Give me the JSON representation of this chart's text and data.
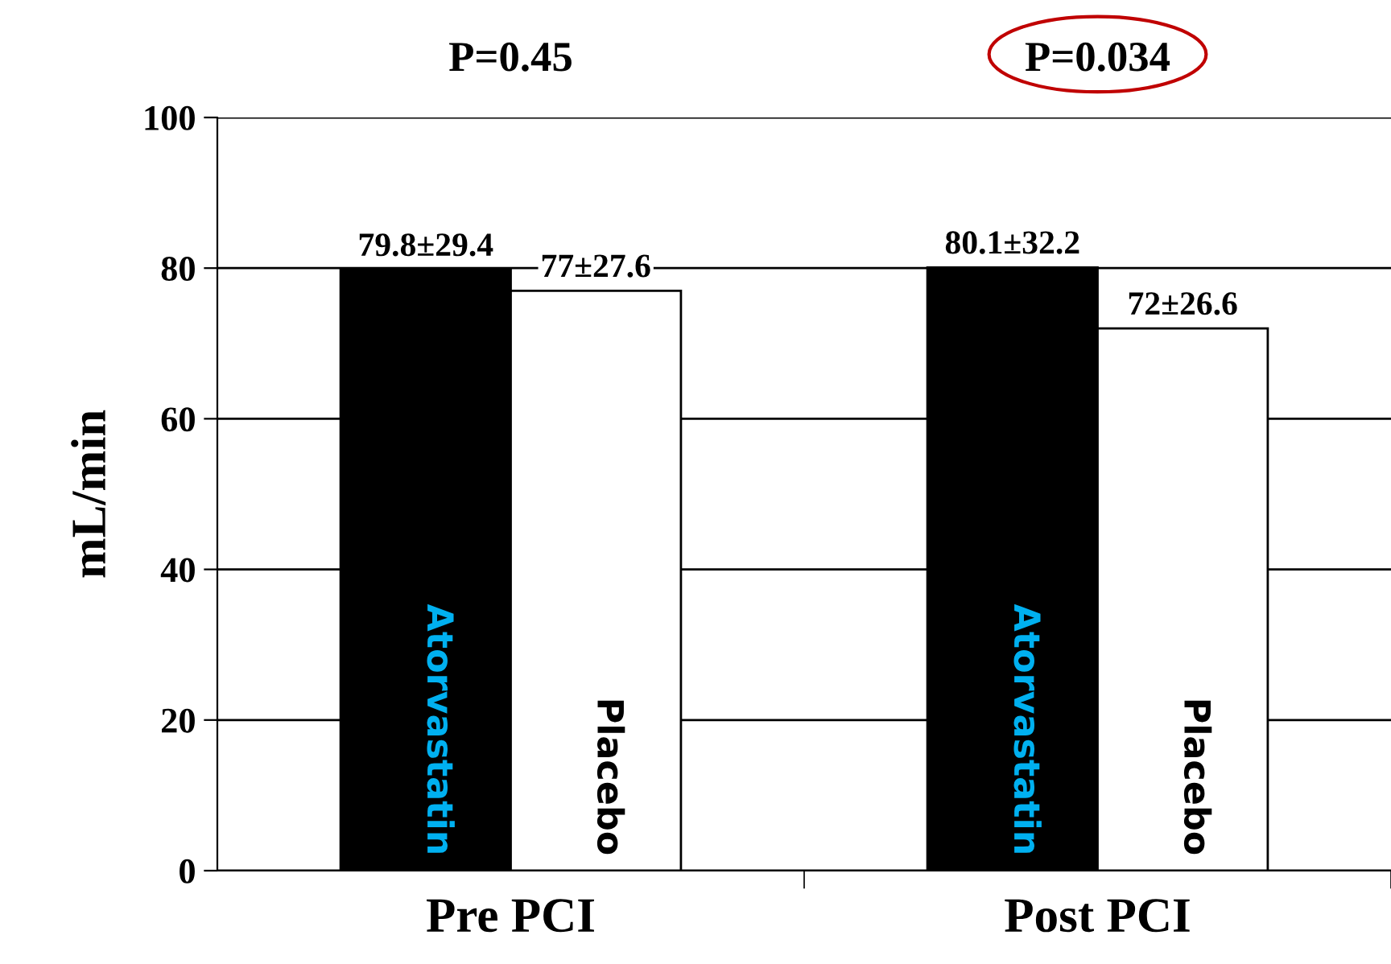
{
  "chart_data": {
    "type": "bar",
    "ylabel": "mL/min",
    "categories": [
      "Pre PCI",
      "Post PCI"
    ],
    "series": [
      {
        "name": "Atorvastatin",
        "color": "#000000",
        "values": [
          79.8,
          80.1
        ],
        "value_labels": [
          "79.8±29.4",
          "80.1±32.2"
        ]
      },
      {
        "name": "Placebo",
        "color": "#ffffff",
        "values": [
          77,
          72
        ],
        "value_labels": [
          "77±27.6",
          "72±26.6"
        ]
      }
    ],
    "annotations": [
      "P=0.45",
      "P=0.034"
    ],
    "ylim": [
      0,
      100
    ],
    "yticks": [
      0,
      20,
      40,
      60,
      80,
      100
    ],
    "grid": "y",
    "legend": false
  }
}
